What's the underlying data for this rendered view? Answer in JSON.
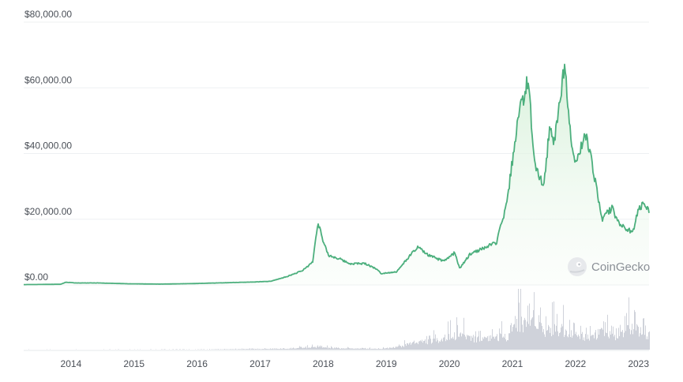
{
  "chart_data": {
    "type": "area",
    "title": "",
    "xlabel": "",
    "ylabel": "",
    "ylim": [
      0,
      80000
    ],
    "xlim": [
      "2013-04",
      "2023-03"
    ],
    "grid": true,
    "legend": "none",
    "y_ticks": [
      {
        "value": 0,
        "label": "$0.00"
      },
      {
        "value": 20000,
        "label": "$20,000.00"
      },
      {
        "value": 40000,
        "label": "$40,000.00"
      },
      {
        "value": 60000,
        "label": "$60,000.00"
      },
      {
        "value": 80000,
        "label": "$80,000.00"
      }
    ],
    "x_ticks": [
      {
        "value": 2014,
        "label": "2014"
      },
      {
        "value": 2015,
        "label": "2015"
      },
      {
        "value": 2016,
        "label": "2016"
      },
      {
        "value": 2017,
        "label": "2017"
      },
      {
        "value": 2018,
        "label": "2018"
      },
      {
        "value": 2019,
        "label": "2019"
      },
      {
        "value": 2020,
        "label": "2020"
      },
      {
        "value": 2021,
        "label": "2021"
      },
      {
        "value": 2022,
        "label": "2022"
      },
      {
        "value": 2023,
        "label": "2023"
      }
    ],
    "series": [
      {
        "name": "",
        "kind": "price",
        "color": "#4caf7d",
        "points": [
          [
            "2013-04",
            100
          ],
          [
            "2013-11",
            200
          ],
          [
            "2013-12",
            800
          ],
          [
            "2014-02",
            600
          ],
          [
            "2014-06",
            600
          ],
          [
            "2014-12",
            350
          ],
          [
            "2015-06",
            250
          ],
          [
            "2015-12",
            400
          ],
          [
            "2016-06",
            650
          ],
          [
            "2016-12",
            900
          ],
          [
            "2017-03",
            1100
          ],
          [
            "2017-06",
            2500
          ],
          [
            "2017-09",
            4300
          ],
          [
            "2017-11",
            7000
          ],
          [
            "2017-12",
            19500
          ],
          [
            "2018-01",
            13000
          ],
          [
            "2018-02",
            9000
          ],
          [
            "2018-04",
            8000
          ],
          [
            "2018-06",
            6500
          ],
          [
            "2018-09",
            6500
          ],
          [
            "2018-11",
            5000
          ],
          [
            "2018-12",
            3500
          ],
          [
            "2019-03",
            4000
          ],
          [
            "2019-05",
            8000
          ],
          [
            "2019-07",
            11500
          ],
          [
            "2019-09",
            9000
          ],
          [
            "2019-12",
            7200
          ],
          [
            "2020-02",
            9800
          ],
          [
            "2020-03",
            5000
          ],
          [
            "2020-05",
            9500
          ],
          [
            "2020-08",
            11500
          ],
          [
            "2020-10",
            13000
          ],
          [
            "2020-12",
            25000
          ],
          [
            "2021-01",
            38000
          ],
          [
            "2021-02",
            50000
          ],
          [
            "2021-04",
            63000
          ],
          [
            "2021-05",
            40000
          ],
          [
            "2021-06",
            33000
          ],
          [
            "2021-07",
            30000
          ],
          [
            "2021-08",
            47000
          ],
          [
            "2021-09",
            44000
          ],
          [
            "2021-11",
            67500
          ],
          [
            "2021-12",
            47000
          ],
          [
            "2022-01",
            37000
          ],
          [
            "2022-03",
            46000
          ],
          [
            "2022-05",
            30000
          ],
          [
            "2022-06",
            20000
          ],
          [
            "2022-08",
            23500
          ],
          [
            "2022-09",
            19500
          ],
          [
            "2022-11",
            16500
          ],
          [
            "2022-12",
            16600
          ],
          [
            "2023-01",
            23000
          ],
          [
            "2023-02",
            24500
          ],
          [
            "2023-03",
            22500
          ]
        ]
      },
      {
        "name": "",
        "kind": "volume",
        "color": "#cfd2da",
        "ylim": [
          0,
          100
        ],
        "points": [
          [
            "2013-04",
            0.3
          ],
          [
            "2014-06",
            0.3
          ],
          [
            "2015-12",
            0.5
          ],
          [
            "2016-06",
            0.8
          ],
          [
            "2017-01",
            1.5
          ],
          [
            "2017-06",
            2
          ],
          [
            "2017-12",
            6
          ],
          [
            "2018-03",
            3
          ],
          [
            "2018-12",
            2
          ],
          [
            "2019-04",
            8
          ],
          [
            "2019-06",
            16
          ],
          [
            "2019-10",
            20
          ],
          [
            "2020-01",
            30
          ],
          [
            "2020-03",
            35
          ],
          [
            "2020-06",
            25
          ],
          [
            "2020-09",
            28
          ],
          [
            "2020-12",
            30
          ],
          [
            "2021-01",
            55
          ],
          [
            "2021-02",
            65
          ],
          [
            "2021-04",
            60
          ],
          [
            "2021-05",
            80
          ],
          [
            "2021-07",
            45
          ],
          [
            "2021-09",
            50
          ],
          [
            "2021-11",
            45
          ],
          [
            "2022-01",
            35
          ],
          [
            "2022-03",
            30
          ],
          [
            "2022-06",
            40
          ],
          [
            "2022-09",
            28
          ],
          [
            "2022-11",
            55
          ],
          [
            "2023-01",
            30
          ],
          [
            "2023-03",
            35
          ]
        ]
      }
    ],
    "watermark": {
      "text": "CoinGecko",
      "icon": "gecko-logo-icon"
    }
  }
}
